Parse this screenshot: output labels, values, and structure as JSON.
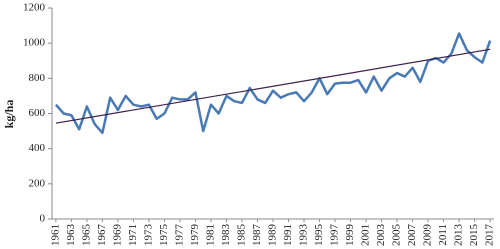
{
  "chart_data": {
    "type": "line",
    "y_label": "kg/ha",
    "x": [
      1961,
      1962,
      1963,
      1964,
      1965,
      1966,
      1967,
      1968,
      1969,
      1970,
      1971,
      1972,
      1973,
      1974,
      1975,
      1976,
      1977,
      1978,
      1979,
      1980,
      1981,
      1982,
      1983,
      1984,
      1985,
      1986,
      1987,
      1988,
      1989,
      1990,
      1991,
      1992,
      1993,
      1994,
      1995,
      1996,
      1997,
      1998,
      1999,
      2000,
      2001,
      2002,
      2003,
      2004,
      2005,
      2006,
      2007,
      2008,
      2009,
      2010,
      2011,
      2012,
      2013,
      2014,
      2015,
      2016,
      2017
    ],
    "series": [
      {
        "color": "#4a7ab5",
        "values": [
          650,
          600,
          590,
          510,
          640,
          540,
          490,
          690,
          620,
          700,
          650,
          640,
          650,
          570,
          600,
          690,
          680,
          680,
          720,
          500,
          650,
          600,
          700,
          670,
          660,
          745,
          680,
          660,
          730,
          690,
          710,
          720,
          670,
          720,
          800,
          710,
          770,
          775,
          775,
          790,
          720,
          810,
          730,
          800,
          830,
          810,
          860,
          780,
          900,
          915,
          890,
          940,
          1055,
          960,
          920,
          890,
          1015
        ]
      }
    ],
    "trend": {
      "color": "#3d1f4a",
      "x": [
        1961,
        2017
      ],
      "values": [
        545,
        965
      ]
    },
    "xlim": [
      1960.5,
      2017.5
    ],
    "xticks": [
      1961,
      1963,
      1965,
      1967,
      1969,
      1971,
      1973,
      1975,
      1977,
      1979,
      1981,
      1983,
      1985,
      1987,
      1989,
      1991,
      1993,
      1995,
      1997,
      1999,
      2001,
      2003,
      2005,
      2007,
      2009,
      2011,
      2013,
      2015,
      2017
    ],
    "ylim": [
      0,
      1200
    ],
    "yticks": [
      0,
      200,
      400,
      600,
      800,
      1000,
      1200
    ],
    "grid": false
  }
}
